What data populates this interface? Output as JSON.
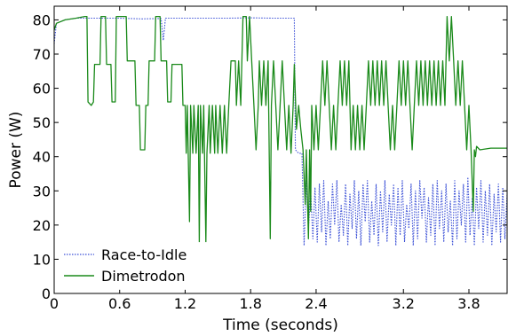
{
  "chart_data": {
    "type": "line",
    "xlabel": "Time (seconds)",
    "ylabel": "Power (W)",
    "xlim": [
      0,
      4.15
    ],
    "ylim": [
      0,
      84
    ],
    "xticks": [
      0,
      0.6,
      1.2,
      1.8,
      2.4,
      3.2,
      3.8
    ],
    "xtick_labels": [
      "0",
      "0.6",
      "1.2",
      "1.8",
      "2.4",
      "3.2",
      "3.8"
    ],
    "yticks": [
      0,
      10,
      20,
      30,
      40,
      50,
      60,
      70,
      80
    ],
    "ytick_labels": [
      "0",
      "10",
      "20",
      "30",
      "40",
      "50",
      "60",
      "70",
      "80"
    ],
    "grid": false,
    "legend": "lower-left",
    "series": [
      {
        "name": "Race-to-Idle",
        "color": "#3a4fd6",
        "style": "dotted",
        "points": [
          [
            0,
            73
          ],
          [
            0.02,
            79
          ],
          [
            0.1,
            80
          ],
          [
            0.2,
            80.5
          ],
          [
            0.4,
            80.5
          ],
          [
            0.6,
            80.5
          ],
          [
            0.8,
            80.3
          ],
          [
            0.98,
            80.4
          ],
          [
            1.0,
            74
          ],
          [
            1.02,
            80.5
          ],
          [
            1.2,
            80.5
          ],
          [
            1.4,
            80.5
          ],
          [
            1.6,
            80.5
          ],
          [
            1.8,
            80.6
          ],
          [
            2.0,
            80.5
          ],
          [
            2.18,
            80.5
          ],
          [
            2.2,
            80.5
          ],
          [
            2.21,
            42
          ],
          [
            2.24,
            41
          ],
          [
            2.27,
            41
          ],
          [
            2.29,
            14
          ],
          [
            2.31,
            33
          ],
          [
            2.33,
            19
          ],
          [
            2.35,
            30
          ],
          [
            2.37,
            16
          ],
          [
            2.39,
            31
          ],
          [
            2.41,
            15
          ],
          [
            2.43,
            32
          ],
          [
            2.45,
            18
          ],
          [
            2.47,
            33
          ],
          [
            2.49,
            14
          ],
          [
            2.51,
            27
          ],
          [
            2.53,
            16
          ],
          [
            2.55,
            32
          ],
          [
            2.57,
            20
          ],
          [
            2.59,
            33
          ],
          [
            2.61,
            15
          ],
          [
            2.63,
            26
          ],
          [
            2.65,
            17
          ],
          [
            2.67,
            32
          ],
          [
            2.69,
            14
          ],
          [
            2.71,
            29
          ],
          [
            2.73,
            19
          ],
          [
            2.75,
            33
          ],
          [
            2.77,
            16
          ],
          [
            2.79,
            30
          ],
          [
            2.81,
            14
          ],
          [
            2.83,
            32
          ],
          [
            2.85,
            21
          ],
          [
            2.87,
            33
          ],
          [
            2.89,
            15
          ],
          [
            2.91,
            27
          ],
          [
            2.93,
            17
          ],
          [
            2.95,
            32
          ],
          [
            2.97,
            14
          ],
          [
            2.99,
            30
          ],
          [
            3.01,
            18
          ],
          [
            3.03,
            33
          ],
          [
            3.05,
            15
          ],
          [
            3.07,
            29
          ],
          [
            3.09,
            20
          ],
          [
            3.11,
            32
          ],
          [
            3.13,
            14
          ],
          [
            3.15,
            31
          ],
          [
            3.17,
            17
          ],
          [
            3.19,
            33
          ],
          [
            3.21,
            15
          ],
          [
            3.23,
            26
          ],
          [
            3.25,
            19
          ],
          [
            3.27,
            32
          ],
          [
            3.29,
            14
          ],
          [
            3.31,
            30
          ],
          [
            3.33,
            16
          ],
          [
            3.35,
            33
          ],
          [
            3.37,
            22
          ],
          [
            3.39,
            31
          ],
          [
            3.41,
            15
          ],
          [
            3.43,
            28
          ],
          [
            3.45,
            17
          ],
          [
            3.47,
            32
          ],
          [
            3.49,
            14
          ],
          [
            3.51,
            33
          ],
          [
            3.53,
            19
          ],
          [
            3.55,
            30
          ],
          [
            3.57,
            15
          ],
          [
            3.59,
            32
          ],
          [
            3.61,
            18
          ],
          [
            3.63,
            27
          ],
          [
            3.65,
            14
          ],
          [
            3.67,
            33
          ],
          [
            3.69,
            16
          ],
          [
            3.71,
            30
          ],
          [
            3.73,
            20
          ],
          [
            3.75,
            32
          ],
          [
            3.77,
            15
          ],
          [
            3.79,
            34
          ],
          [
            3.81,
            17
          ],
          [
            3.83,
            28
          ],
          [
            3.85,
            14
          ],
          [
            3.87,
            31
          ],
          [
            3.89,
            19
          ],
          [
            3.91,
            33
          ],
          [
            3.93,
            15
          ],
          [
            3.95,
            30
          ],
          [
            3.97,
            17
          ],
          [
            3.99,
            32
          ],
          [
            4.01,
            14
          ],
          [
            4.03,
            29
          ],
          [
            4.05,
            18
          ],
          [
            4.07,
            32
          ],
          [
            4.09,
            15
          ],
          [
            4.11,
            31
          ],
          [
            4.13,
            16
          ],
          [
            4.15,
            29
          ]
        ]
      },
      {
        "name": "Dimetrodon",
        "color": "#1a8a1a",
        "style": "solid",
        "points": [
          [
            0,
            77
          ],
          [
            0.02,
            79
          ],
          [
            0.1,
            80
          ],
          [
            0.2,
            80.5
          ],
          [
            0.28,
            81
          ],
          [
            0.3,
            81
          ],
          [
            0.31,
            56
          ],
          [
            0.34,
            55
          ],
          [
            0.36,
            56
          ],
          [
            0.37,
            67
          ],
          [
            0.42,
            67
          ],
          [
            0.43,
            81
          ],
          [
            0.47,
            81
          ],
          [
            0.48,
            67
          ],
          [
            0.52,
            67
          ],
          [
            0.53,
            56
          ],
          [
            0.56,
            56
          ],
          [
            0.57,
            81
          ],
          [
            0.66,
            81
          ],
          [
            0.67,
            68
          ],
          [
            0.74,
            68
          ],
          [
            0.75,
            55
          ],
          [
            0.78,
            55
          ],
          [
            0.79,
            42
          ],
          [
            0.83,
            42
          ],
          [
            0.84,
            55
          ],
          [
            0.86,
            55
          ],
          [
            0.87,
            68
          ],
          [
            0.92,
            68
          ],
          [
            0.93,
            81
          ],
          [
            0.97,
            81
          ],
          [
            0.98,
            68
          ],
          [
            1.03,
            68
          ],
          [
            1.04,
            56
          ],
          [
            1.07,
            56
          ],
          [
            1.08,
            67
          ],
          [
            1.17,
            67
          ],
          [
            1.18,
            55
          ],
          [
            1.2,
            55
          ],
          [
            1.21,
            41
          ],
          [
            1.22,
            55
          ],
          [
            1.24,
            21
          ],
          [
            1.25,
            55
          ],
          [
            1.27,
            41
          ],
          [
            1.28,
            55
          ],
          [
            1.3,
            41
          ],
          [
            1.32,
            55
          ],
          [
            1.33,
            15
          ],
          [
            1.34,
            55
          ],
          [
            1.36,
            41
          ],
          [
            1.37,
            55
          ],
          [
            1.39,
            15
          ],
          [
            1.4,
            41
          ],
          [
            1.42,
            55
          ],
          [
            1.43,
            41
          ],
          [
            1.45,
            55
          ],
          [
            1.47,
            41
          ],
          [
            1.48,
            55
          ],
          [
            1.5,
            41
          ],
          [
            1.52,
            55
          ],
          [
            1.54,
            41
          ],
          [
            1.56,
            55
          ],
          [
            1.58,
            41
          ],
          [
            1.6,
            55
          ],
          [
            1.62,
            68
          ],
          [
            1.66,
            68
          ],
          [
            1.67,
            55
          ],
          [
            1.69,
            68
          ],
          [
            1.71,
            55
          ],
          [
            1.73,
            81
          ],
          [
            1.76,
            81
          ],
          [
            1.77,
            68
          ],
          [
            1.79,
            81
          ],
          [
            1.81,
            68
          ],
          [
            1.83,
            55
          ],
          [
            1.85,
            42
          ],
          [
            1.87,
            55
          ],
          [
            1.88,
            68
          ],
          [
            1.9,
            55
          ],
          [
            1.92,
            68
          ],
          [
            1.94,
            55
          ],
          [
            1.96,
            68
          ],
          [
            1.98,
            16
          ],
          [
            1.99,
            55
          ],
          [
            2.01,
            68
          ],
          [
            2.03,
            55
          ],
          [
            2.05,
            42
          ],
          [
            2.07,
            55
          ],
          [
            2.09,
            68
          ],
          [
            2.11,
            55
          ],
          [
            2.13,
            42
          ],
          [
            2.15,
            55
          ],
          [
            2.17,
            41
          ],
          [
            2.19,
            55
          ],
          [
            2.2,
            67
          ],
          [
            2.22,
            48
          ],
          [
            2.24,
            55
          ],
          [
            2.26,
            48
          ],
          [
            2.28,
            42
          ],
          [
            2.3,
            26
          ],
          [
            2.31,
            42
          ],
          [
            2.33,
            16
          ],
          [
            2.34,
            42
          ],
          [
            2.35,
            24
          ],
          [
            2.36,
            55
          ],
          [
            2.38,
            42
          ],
          [
            2.4,
            55
          ],
          [
            2.42,
            42
          ],
          [
            2.44,
            55
          ],
          [
            2.46,
            68
          ],
          [
            2.48,
            55
          ],
          [
            2.5,
            68
          ],
          [
            2.52,
            55
          ],
          [
            2.54,
            42
          ],
          [
            2.56,
            55
          ],
          [
            2.58,
            42
          ],
          [
            2.6,
            55
          ],
          [
            2.62,
            68
          ],
          [
            2.64,
            55
          ],
          [
            2.66,
            68
          ],
          [
            2.68,
            55
          ],
          [
            2.7,
            68
          ],
          [
            2.72,
            42
          ],
          [
            2.74,
            55
          ],
          [
            2.76,
            42
          ],
          [
            2.78,
            55
          ],
          [
            2.8,
            42
          ],
          [
            2.82,
            55
          ],
          [
            2.84,
            42
          ],
          [
            2.86,
            55
          ],
          [
            2.88,
            68
          ],
          [
            2.9,
            55
          ],
          [
            2.92,
            68
          ],
          [
            2.94,
            55
          ],
          [
            2.96,
            68
          ],
          [
            2.98,
            55
          ],
          [
            3.0,
            68
          ],
          [
            3.02,
            55
          ],
          [
            3.04,
            68
          ],
          [
            3.06,
            55
          ],
          [
            3.08,
            42
          ],
          [
            3.1,
            55
          ],
          [
            3.12,
            42
          ],
          [
            3.14,
            55
          ],
          [
            3.16,
            68
          ],
          [
            3.18,
            55
          ],
          [
            3.2,
            68
          ],
          [
            3.22,
            55
          ],
          [
            3.24,
            68
          ],
          [
            3.26,
            55
          ],
          [
            3.28,
            42
          ],
          [
            3.3,
            55
          ],
          [
            3.32,
            68
          ],
          [
            3.34,
            55
          ],
          [
            3.36,
            68
          ],
          [
            3.38,
            55
          ],
          [
            3.4,
            68
          ],
          [
            3.42,
            55
          ],
          [
            3.44,
            68
          ],
          [
            3.46,
            55
          ],
          [
            3.48,
            68
          ],
          [
            3.5,
            55
          ],
          [
            3.52,
            68
          ],
          [
            3.54,
            55
          ],
          [
            3.56,
            68
          ],
          [
            3.58,
            55
          ],
          [
            3.6,
            81
          ],
          [
            3.62,
            68
          ],
          [
            3.64,
            81
          ],
          [
            3.66,
            68
          ],
          [
            3.68,
            55
          ],
          [
            3.7,
            68
          ],
          [
            3.72,
            55
          ],
          [
            3.74,
            68
          ],
          [
            3.76,
            55
          ],
          [
            3.78,
            42
          ],
          [
            3.8,
            55
          ],
          [
            3.82,
            42
          ],
          [
            3.84,
            24
          ],
          [
            3.85,
            42
          ],
          [
            3.86,
            40
          ],
          [
            3.87,
            43
          ],
          [
            3.9,
            42
          ],
          [
            4.0,
            42.5
          ],
          [
            4.15,
            42.5
          ]
        ]
      }
    ]
  }
}
